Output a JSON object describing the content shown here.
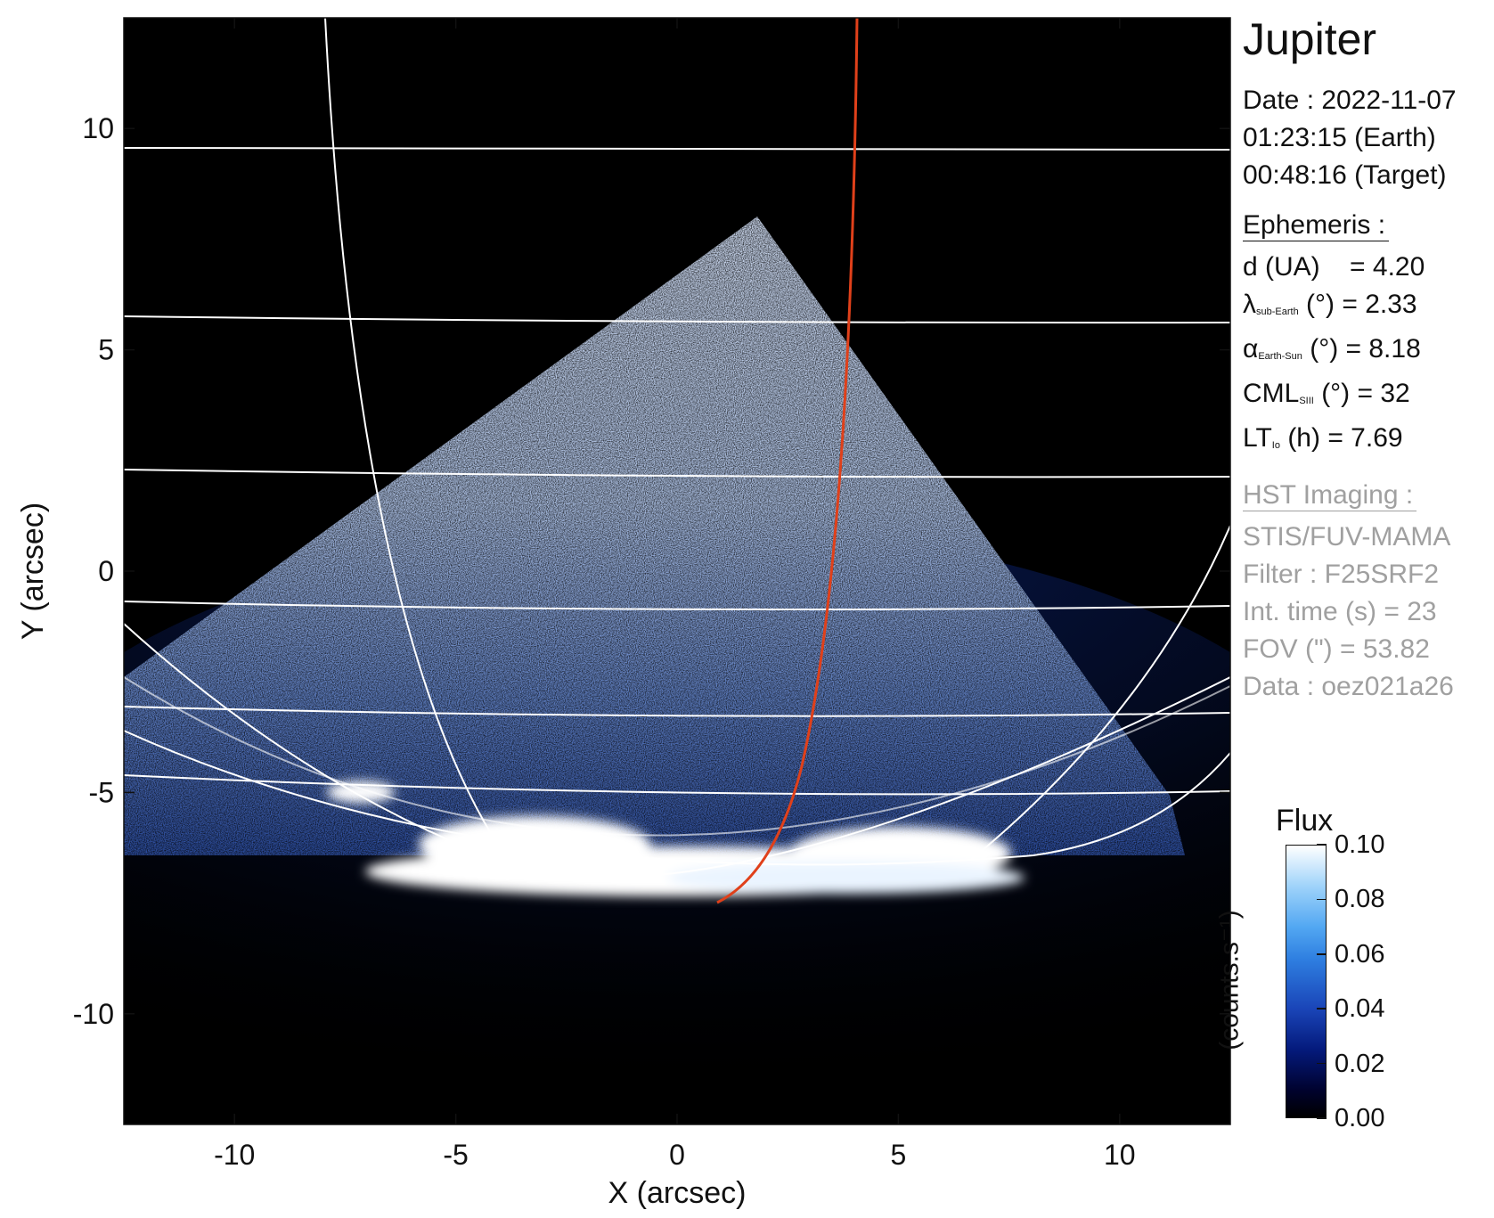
{
  "figure": {
    "xlabel": "X (arcsec)",
    "ylabel": "Y (arcsec)",
    "xlim": [
      -12.5,
      12.5
    ],
    "ylim": [
      -12.5,
      12.5
    ],
    "xticks": [
      "-10",
      "-5",
      "0",
      "5",
      "10"
    ],
    "yticks": [
      "10",
      "5",
      "0",
      "-5",
      "-10"
    ],
    "grid_color": "#ffffff",
    "io_footprint_color": "#e0401a",
    "background_color": "#000000"
  },
  "info": {
    "title": "Jupiter",
    "date": "Date : 2022-11-07",
    "time_earth": "01:23:15 (Earth)",
    "time_target": "00:48:16 (Target)",
    "ephemeris_header": "Ephemeris :",
    "ephemeris": [
      {
        "main": "d (UA)",
        "sub": "",
        "rest": "    = 4.20"
      },
      {
        "main": "λ",
        "sub": "sub-Earth",
        "rest": " (°) = 2.33"
      },
      {
        "main": "α",
        "sub": "Earth-Sun",
        "rest": " (°) = 8.18"
      },
      {
        "main": "CML",
        "sub": "SIII",
        "rest": " (°) = 32"
      },
      {
        "main": "LT",
        "sub": "Io",
        "rest": " (h) = 7.69"
      }
    ],
    "imaging_header": "HST Imaging :",
    "imaging": [
      "STIS/FUV-MAMA",
      "Filter : F25SRF2",
      "Int. time (s) = 23",
      "FOV (\") = 53.82",
      "Data : oez021a26"
    ],
    "imaging_color": "#a0a0a0"
  },
  "colorbar": {
    "title": "Flux",
    "units": "(counts.s⁻¹)",
    "min": 0.0,
    "max": 0.1,
    "tick_labels": [
      "0.10",
      "0.08",
      "0.06",
      "0.04",
      "0.02",
      "0.00"
    ],
    "tick_values": [
      0.1,
      0.08,
      0.06,
      0.04,
      0.02,
      0.0
    ]
  }
}
